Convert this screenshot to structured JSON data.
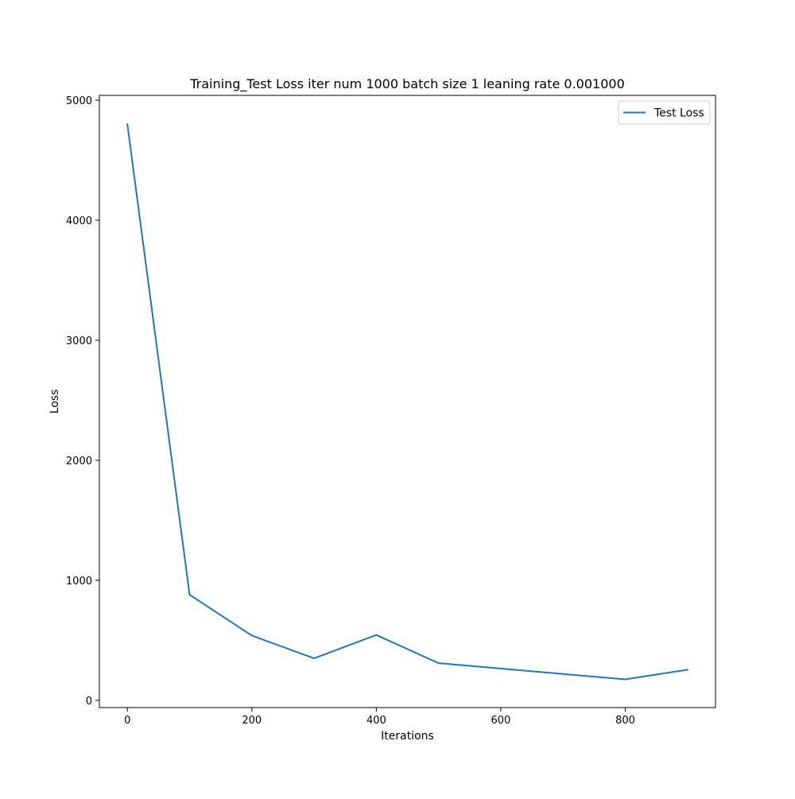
{
  "chart_data": {
    "type": "line",
    "title": "Training_Test Loss  iter num 1000 batch size 1 leaning rate 0.001000",
    "xlabel": "Iterations",
    "ylabel": "Loss",
    "xlim": [
      -45,
      945
    ],
    "ylim": [
      -60,
      5040
    ],
    "xticks": [
      0,
      200,
      400,
      600,
      800
    ],
    "yticks": [
      0,
      1000,
      2000,
      3000,
      4000,
      5000
    ],
    "grid": false,
    "legend_position": "top-right",
    "series": [
      {
        "name": "Test Loss",
        "color": "#1f77b4",
        "x": [
          0,
          100,
          200,
          300,
          400,
          500,
          600,
          700,
          800,
          900
        ],
        "y": [
          4800,
          880,
          540,
          350,
          545,
          310,
          265,
          220,
          175,
          255
        ]
      }
    ]
  }
}
